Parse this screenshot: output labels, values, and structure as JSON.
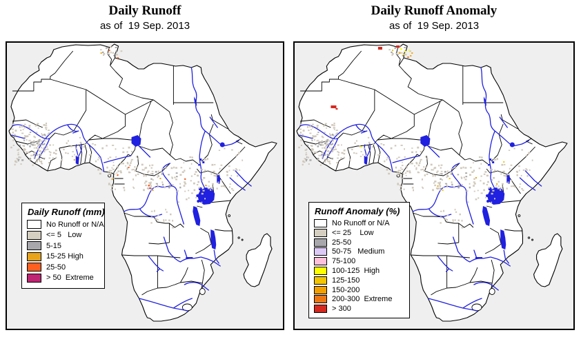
{
  "panels": [
    {
      "id": "daily-runoff",
      "title": "Daily Runoff",
      "subtitle": "as of  19 Sep. 2013",
      "legend": {
        "title": "Daily Runoff (mm)",
        "entries": [
          {
            "label": "No Runoff or N/A",
            "color": "#FFFFFF"
          },
          {
            "label": "<= 5   Low",
            "color": "#D5CFC1"
          },
          {
            "label": "5-15",
            "color": "#A8A8AC"
          },
          {
            "label": "15-25 High",
            "color": "#E8A41B"
          },
          {
            "label": "25-50",
            "color": "#FF5F1F"
          },
          {
            "label": "> 50  Extreme",
            "color": "#BF2573"
          }
        ]
      }
    },
    {
      "id": "daily-runoff-anomaly",
      "title": "Daily Runoff Anomaly",
      "subtitle": "as of  19 Sep. 2013",
      "legend": {
        "title": "Runoff Anomaly (%)",
        "entries": [
          {
            "label": "No Runoff or N/A",
            "color": "#FFFFFF"
          },
          {
            "label": "<= 25    Low",
            "color": "#D5CFC1"
          },
          {
            "label": "25-50",
            "color": "#A8A8AC"
          },
          {
            "label": "50-75   Medium",
            "color": "#DCC9F6"
          },
          {
            "label": "75-100",
            "color": "#FFC0DC"
          },
          {
            "label": "100-125  High",
            "color": "#FFFF00"
          },
          {
            "label": "125-150",
            "color": "#F2C500"
          },
          {
            "label": "150-200",
            "color": "#F2A000"
          },
          {
            "label": "200-300  Extreme",
            "color": "#EB7612"
          },
          {
            "label": "> 300",
            "color": "#D5291F"
          }
        ]
      }
    }
  ],
  "map": {
    "ocean_color": "#EFEFEF",
    "land_color": "#FFFFFF",
    "border_color": "#000000",
    "water_color": "#2020E0",
    "runoff_light_color": "#CFC8BA",
    "runoff_gray_color": "#A9A9A9"
  }
}
